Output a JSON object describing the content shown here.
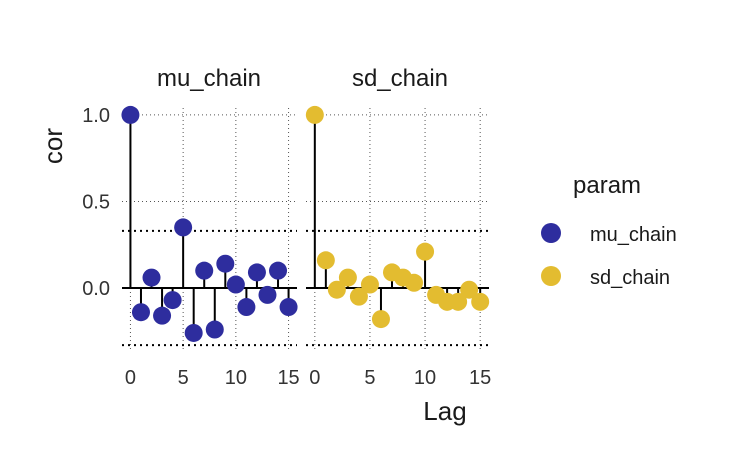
{
  "chart_data": {
    "type": "scatter",
    "subtype": "autocorrelation-lollipop",
    "facet_titles": [
      "mu_chain",
      "sd_chain"
    ],
    "xlabel": "Lag",
    "ylabel": "cor",
    "xlim": [
      -0.8,
      15.8
    ],
    "ylim": [
      -0.37,
      1.04
    ],
    "x_ticks": [
      "0",
      "5",
      "10",
      "15"
    ],
    "y_ticks": [
      "1.0",
      "0.5",
      "0.0"
    ],
    "y_tick_values": [
      1.0,
      0.5,
      0.0
    ],
    "x_tick_values": [
      0,
      5,
      10,
      15
    ],
    "grid": "dotted",
    "confidence_bounds": [
      0.33,
      -0.33
    ],
    "legend_title": "param",
    "legend_position": "right",
    "series": [
      {
        "name": "mu_chain",
        "color": "#2E2D9E",
        "x": [
          0,
          1,
          2,
          3,
          4,
          5,
          6,
          7,
          8,
          9,
          10,
          11,
          12,
          13,
          14,
          15
        ],
        "values": [
          1.0,
          -0.14,
          0.06,
          -0.16,
          -0.07,
          0.35,
          -0.26,
          0.1,
          -0.24,
          0.14,
          0.02,
          -0.11,
          0.09,
          -0.04,
          0.1,
          -0.11
        ]
      },
      {
        "name": "sd_chain",
        "color": "#E3BC30",
        "x": [
          0,
          1,
          2,
          3,
          4,
          5,
          6,
          7,
          8,
          9,
          10,
          11,
          12,
          13,
          14,
          15
        ],
        "values": [
          1.0,
          0.16,
          -0.01,
          0.06,
          -0.05,
          0.02,
          -0.18,
          0.09,
          0.06,
          0.03,
          0.21,
          -0.04,
          -0.08,
          -0.08,
          -0.01,
          -0.08
        ]
      }
    ]
  }
}
